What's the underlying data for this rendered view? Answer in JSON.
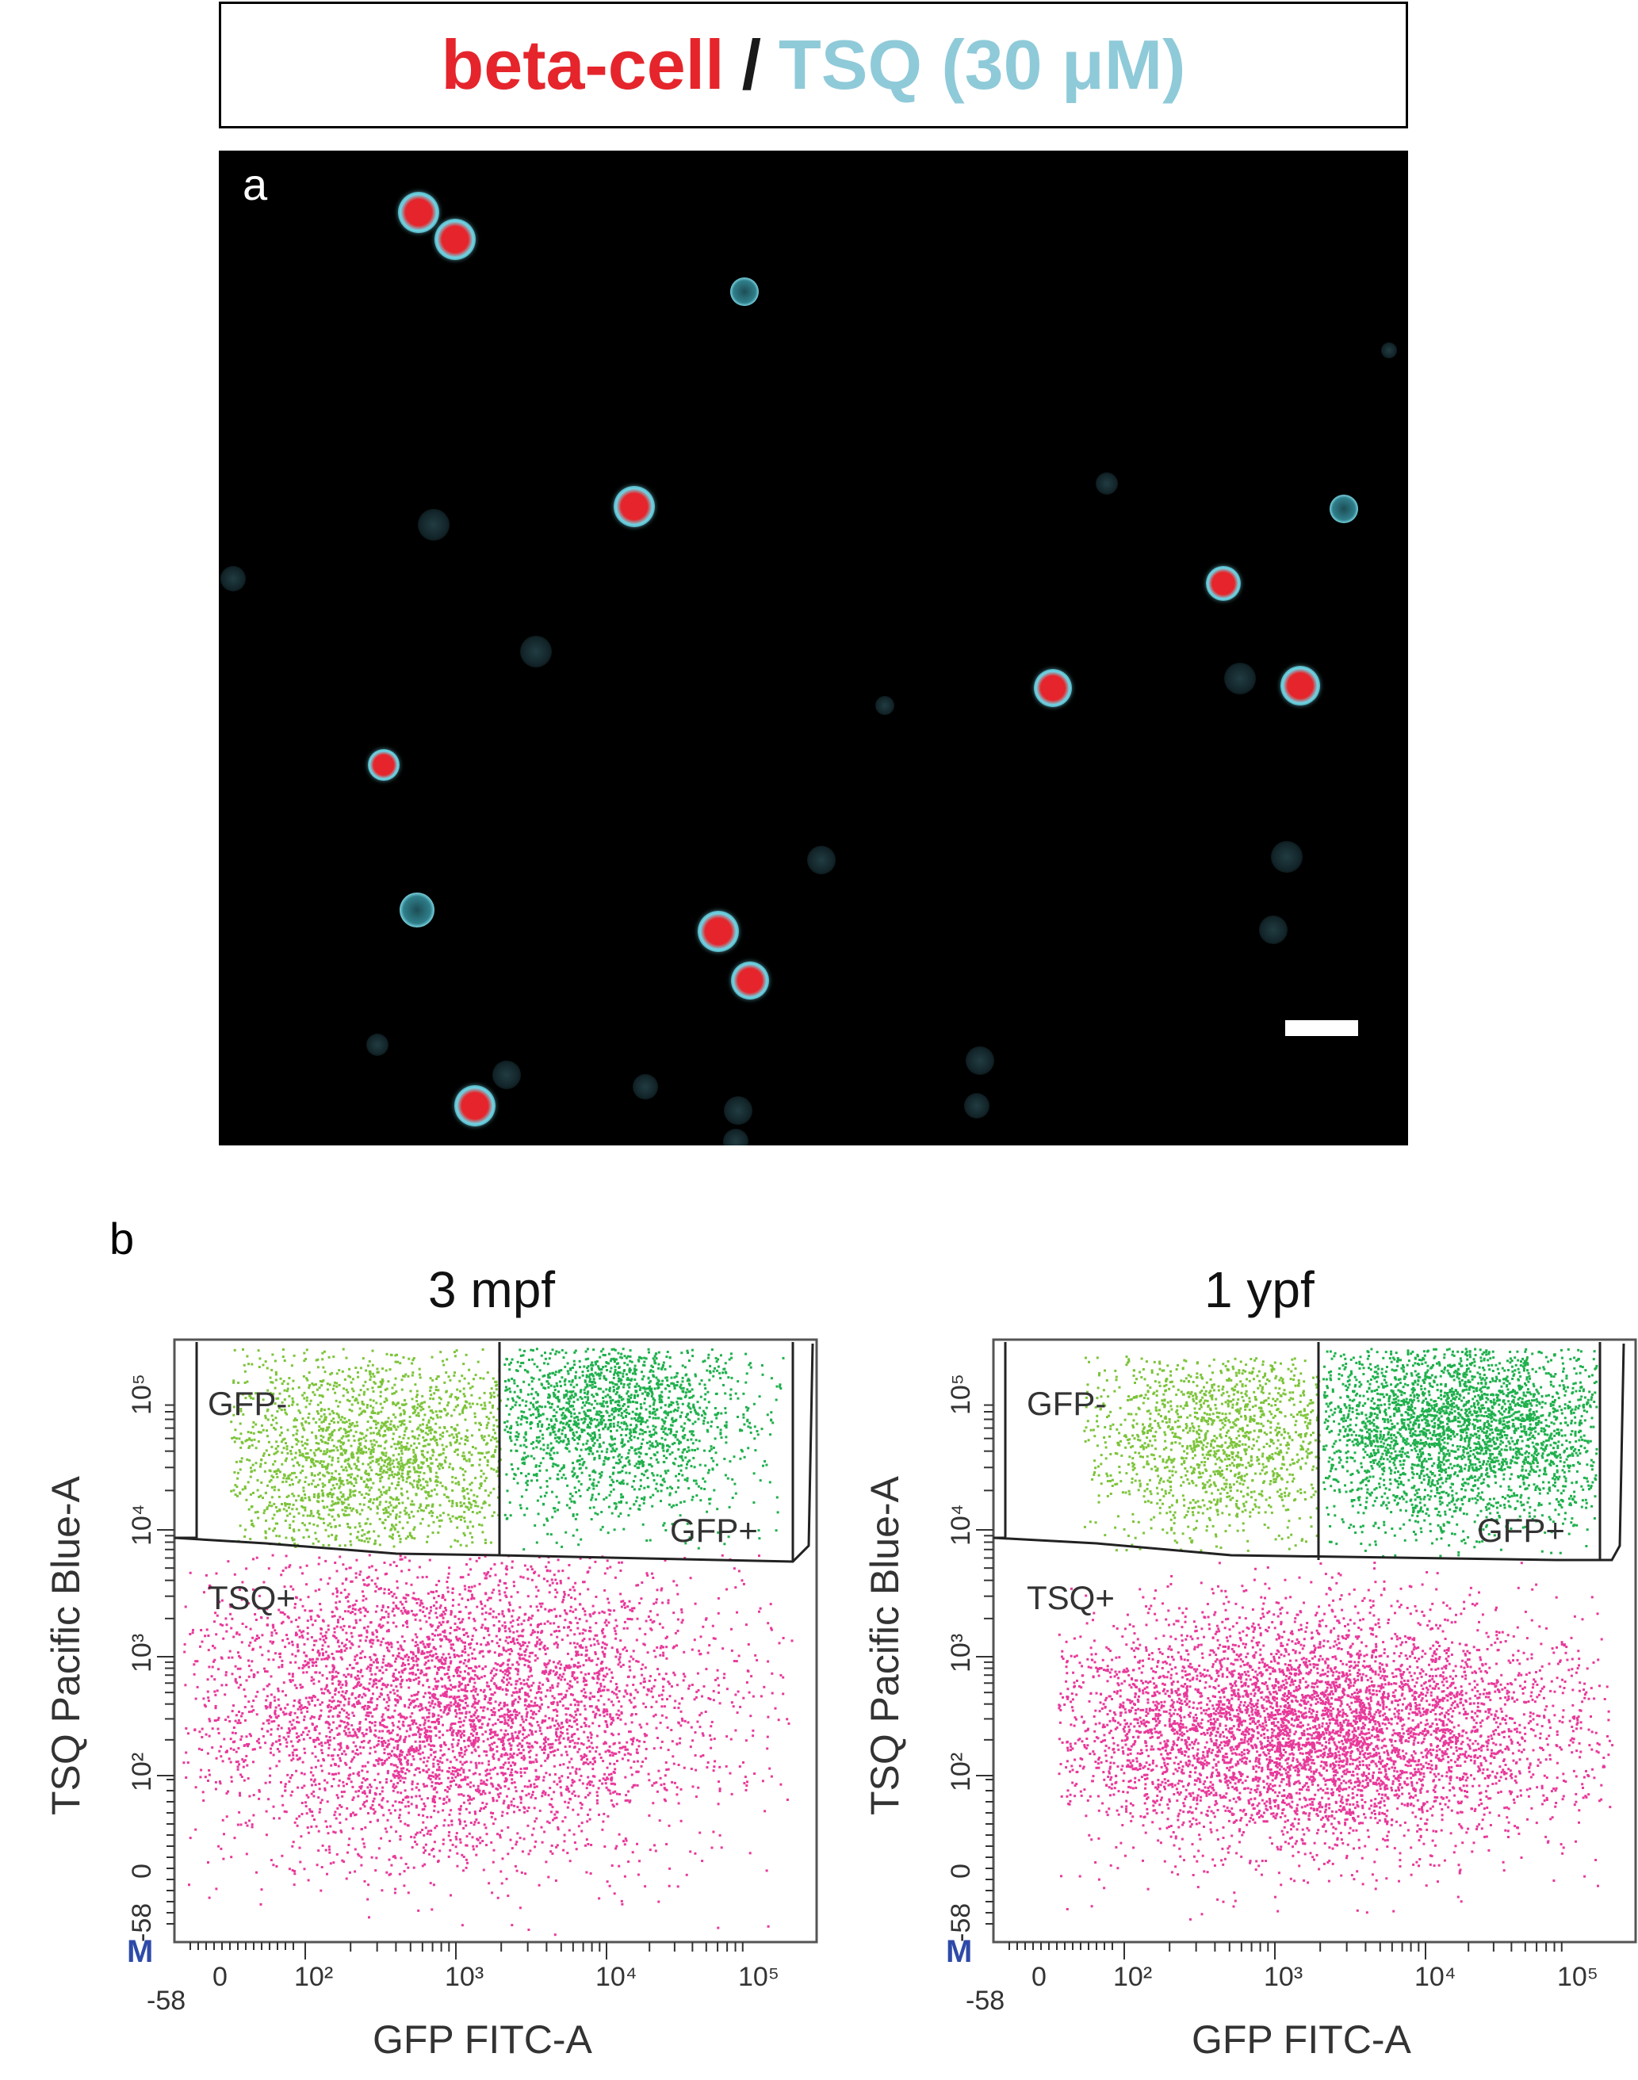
{
  "header": {
    "part1": "beta-cell",
    "separator": "/",
    "part2": "TSQ (30 μM)",
    "colors": {
      "beta_cell": "#e5252b",
      "tsq": "#8fcad9"
    }
  },
  "panel_a": {
    "letter": "a"
  },
  "panel_b": {
    "letter": "b",
    "plots": [
      {
        "title": "3 mpf",
        "xlabel": "GFP FITC-A",
        "ylabel": "TSQ Pacific Blue-A",
        "gates": {
          "gfp_minus": "GFP-",
          "gfp_plus": "GFP+",
          "tsq_plus": "TSQ+"
        },
        "x_ticks": [
          "-58",
          "0",
          "10²",
          "10³",
          "10⁴",
          "10⁵"
        ],
        "y_ticks": [
          "-58",
          "0",
          "10²",
          "10³",
          "10⁴",
          "10⁵"
        ],
        "marker": "M"
      },
      {
        "title": "1 ypf",
        "xlabel": "GFP FITC-A",
        "ylabel": "TSQ Pacific Blue-A",
        "gates": {
          "gfp_minus": "GFP-",
          "gfp_plus": "GFP+",
          "tsq_plus": "TSQ+"
        },
        "x_ticks": [
          "-58",
          "0",
          "10²",
          "10³",
          "10⁴",
          "10⁵"
        ],
        "y_ticks": [
          "-58",
          "0",
          "10²",
          "10³",
          "10⁴",
          "10⁵"
        ],
        "marker": "M"
      }
    ],
    "colors": {
      "gfp_minus": "#7cc43a",
      "gfp_plus": "#1fb04c",
      "tsq_plus": "#e8399a"
    }
  }
}
